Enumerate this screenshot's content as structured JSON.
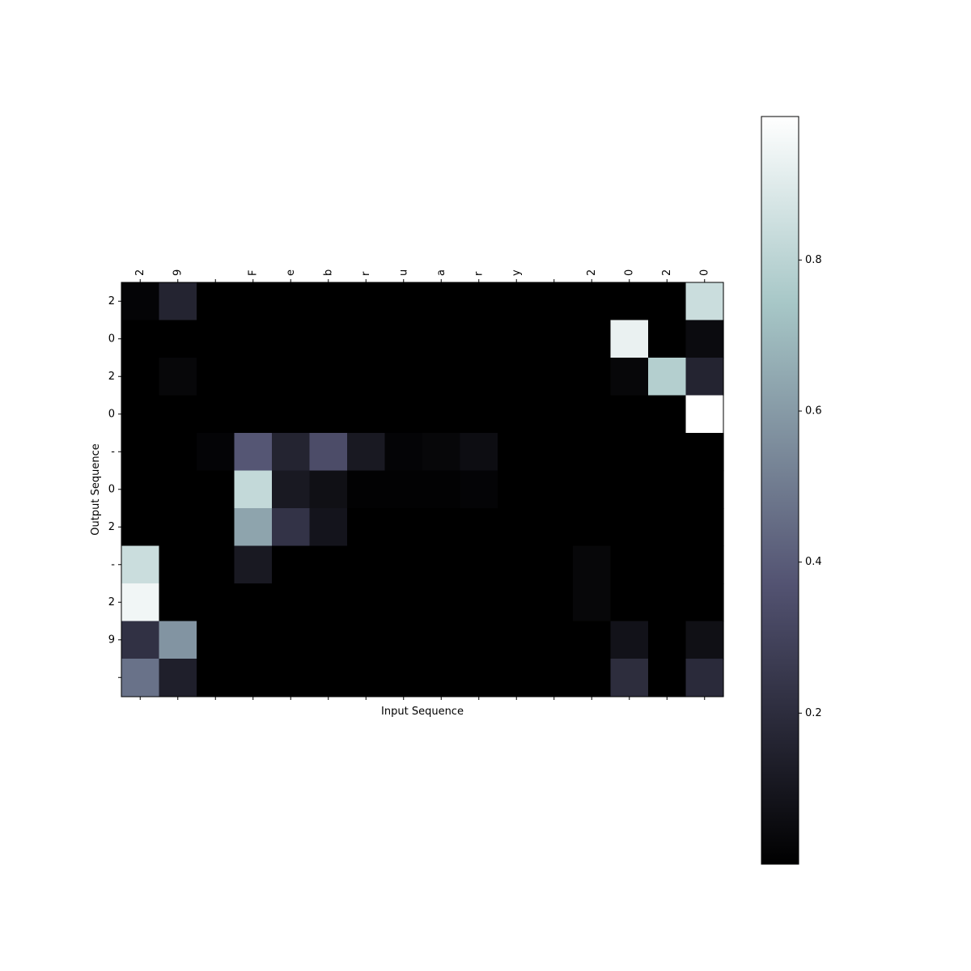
{
  "chart_data": {
    "type": "heatmap",
    "title": "",
    "xlabel": "Input Sequence",
    "ylabel": "Output Sequence",
    "x_categories": [
      "2",
      "9",
      " ",
      "F",
      "e",
      "b",
      "r",
      "u",
      "a",
      "r",
      "y",
      " ",
      "2",
      "0",
      "2",
      "0"
    ],
    "y_categories": [
      "2",
      "0",
      "2",
      "0",
      "-",
      "0",
      "2",
      "-",
      "2",
      "9",
      ""
    ],
    "values": [
      [
        0.02,
        0.16,
        0.0,
        0.0,
        0.0,
        0.0,
        0.0,
        0.0,
        0.0,
        0.0,
        0.0,
        0.0,
        0.0,
        0.0,
        0.0,
        0.84
      ],
      [
        0.0,
        0.0,
        0.0,
        0.0,
        0.0,
        0.0,
        0.0,
        0.0,
        0.0,
        0.0,
        0.0,
        0.0,
        0.0,
        0.93,
        0.0,
        0.05
      ],
      [
        0.0,
        0.03,
        0.0,
        0.0,
        0.0,
        0.0,
        0.0,
        0.0,
        0.0,
        0.0,
        0.0,
        0.0,
        0.0,
        0.03,
        0.78,
        0.16
      ],
      [
        0.0,
        0.0,
        0.0,
        0.0,
        0.0,
        0.0,
        0.0,
        0.0,
        0.0,
        0.0,
        0.0,
        0.0,
        0.0,
        0.0,
        0.0,
        0.99
      ],
      [
        0.0,
        0.0,
        0.02,
        0.38,
        0.16,
        0.34,
        0.11,
        0.02,
        0.03,
        0.06,
        0.0,
        0.0,
        0.0,
        0.0,
        0.0,
        0.0
      ],
      [
        0.0,
        0.0,
        0.0,
        0.82,
        0.11,
        0.07,
        0.01,
        0.01,
        0.01,
        0.02,
        0.0,
        0.0,
        0.0,
        0.0,
        0.0,
        0.0
      ],
      [
        0.0,
        0.0,
        0.0,
        0.63,
        0.23,
        0.09,
        0.0,
        0.0,
        0.0,
        0.0,
        0.0,
        0.0,
        0.0,
        0.0,
        0.0,
        0.0
      ],
      [
        0.84,
        0.0,
        0.0,
        0.11,
        0.0,
        0.0,
        0.0,
        0.0,
        0.0,
        0.0,
        0.0,
        0.0,
        0.03,
        0.0,
        0.0,
        0.0
      ],
      [
        0.95,
        0.0,
        0.0,
        0.0,
        0.0,
        0.0,
        0.0,
        0.0,
        0.0,
        0.0,
        0.0,
        0.0,
        0.03,
        0.0,
        0.0,
        0.0
      ],
      [
        0.22,
        0.58,
        0.0,
        0.0,
        0.0,
        0.0,
        0.0,
        0.0,
        0.0,
        0.0,
        0.0,
        0.0,
        0.0,
        0.08,
        0.0,
        0.07
      ],
      [
        0.47,
        0.14,
        0.0,
        0.0,
        0.0,
        0.0,
        0.0,
        0.0,
        0.0,
        0.0,
        0.0,
        0.0,
        0.0,
        0.2,
        0.0,
        0.19
      ]
    ],
    "colormap": "bone",
    "colorbar": {
      "range": [
        0.0,
        0.99
      ],
      "ticks": [
        0.2,
        0.4,
        0.6,
        0.8
      ],
      "tick_labels": [
        "0.2",
        "0.4",
        "0.6",
        "0.8"
      ]
    },
    "grid": false,
    "legend": "none"
  }
}
